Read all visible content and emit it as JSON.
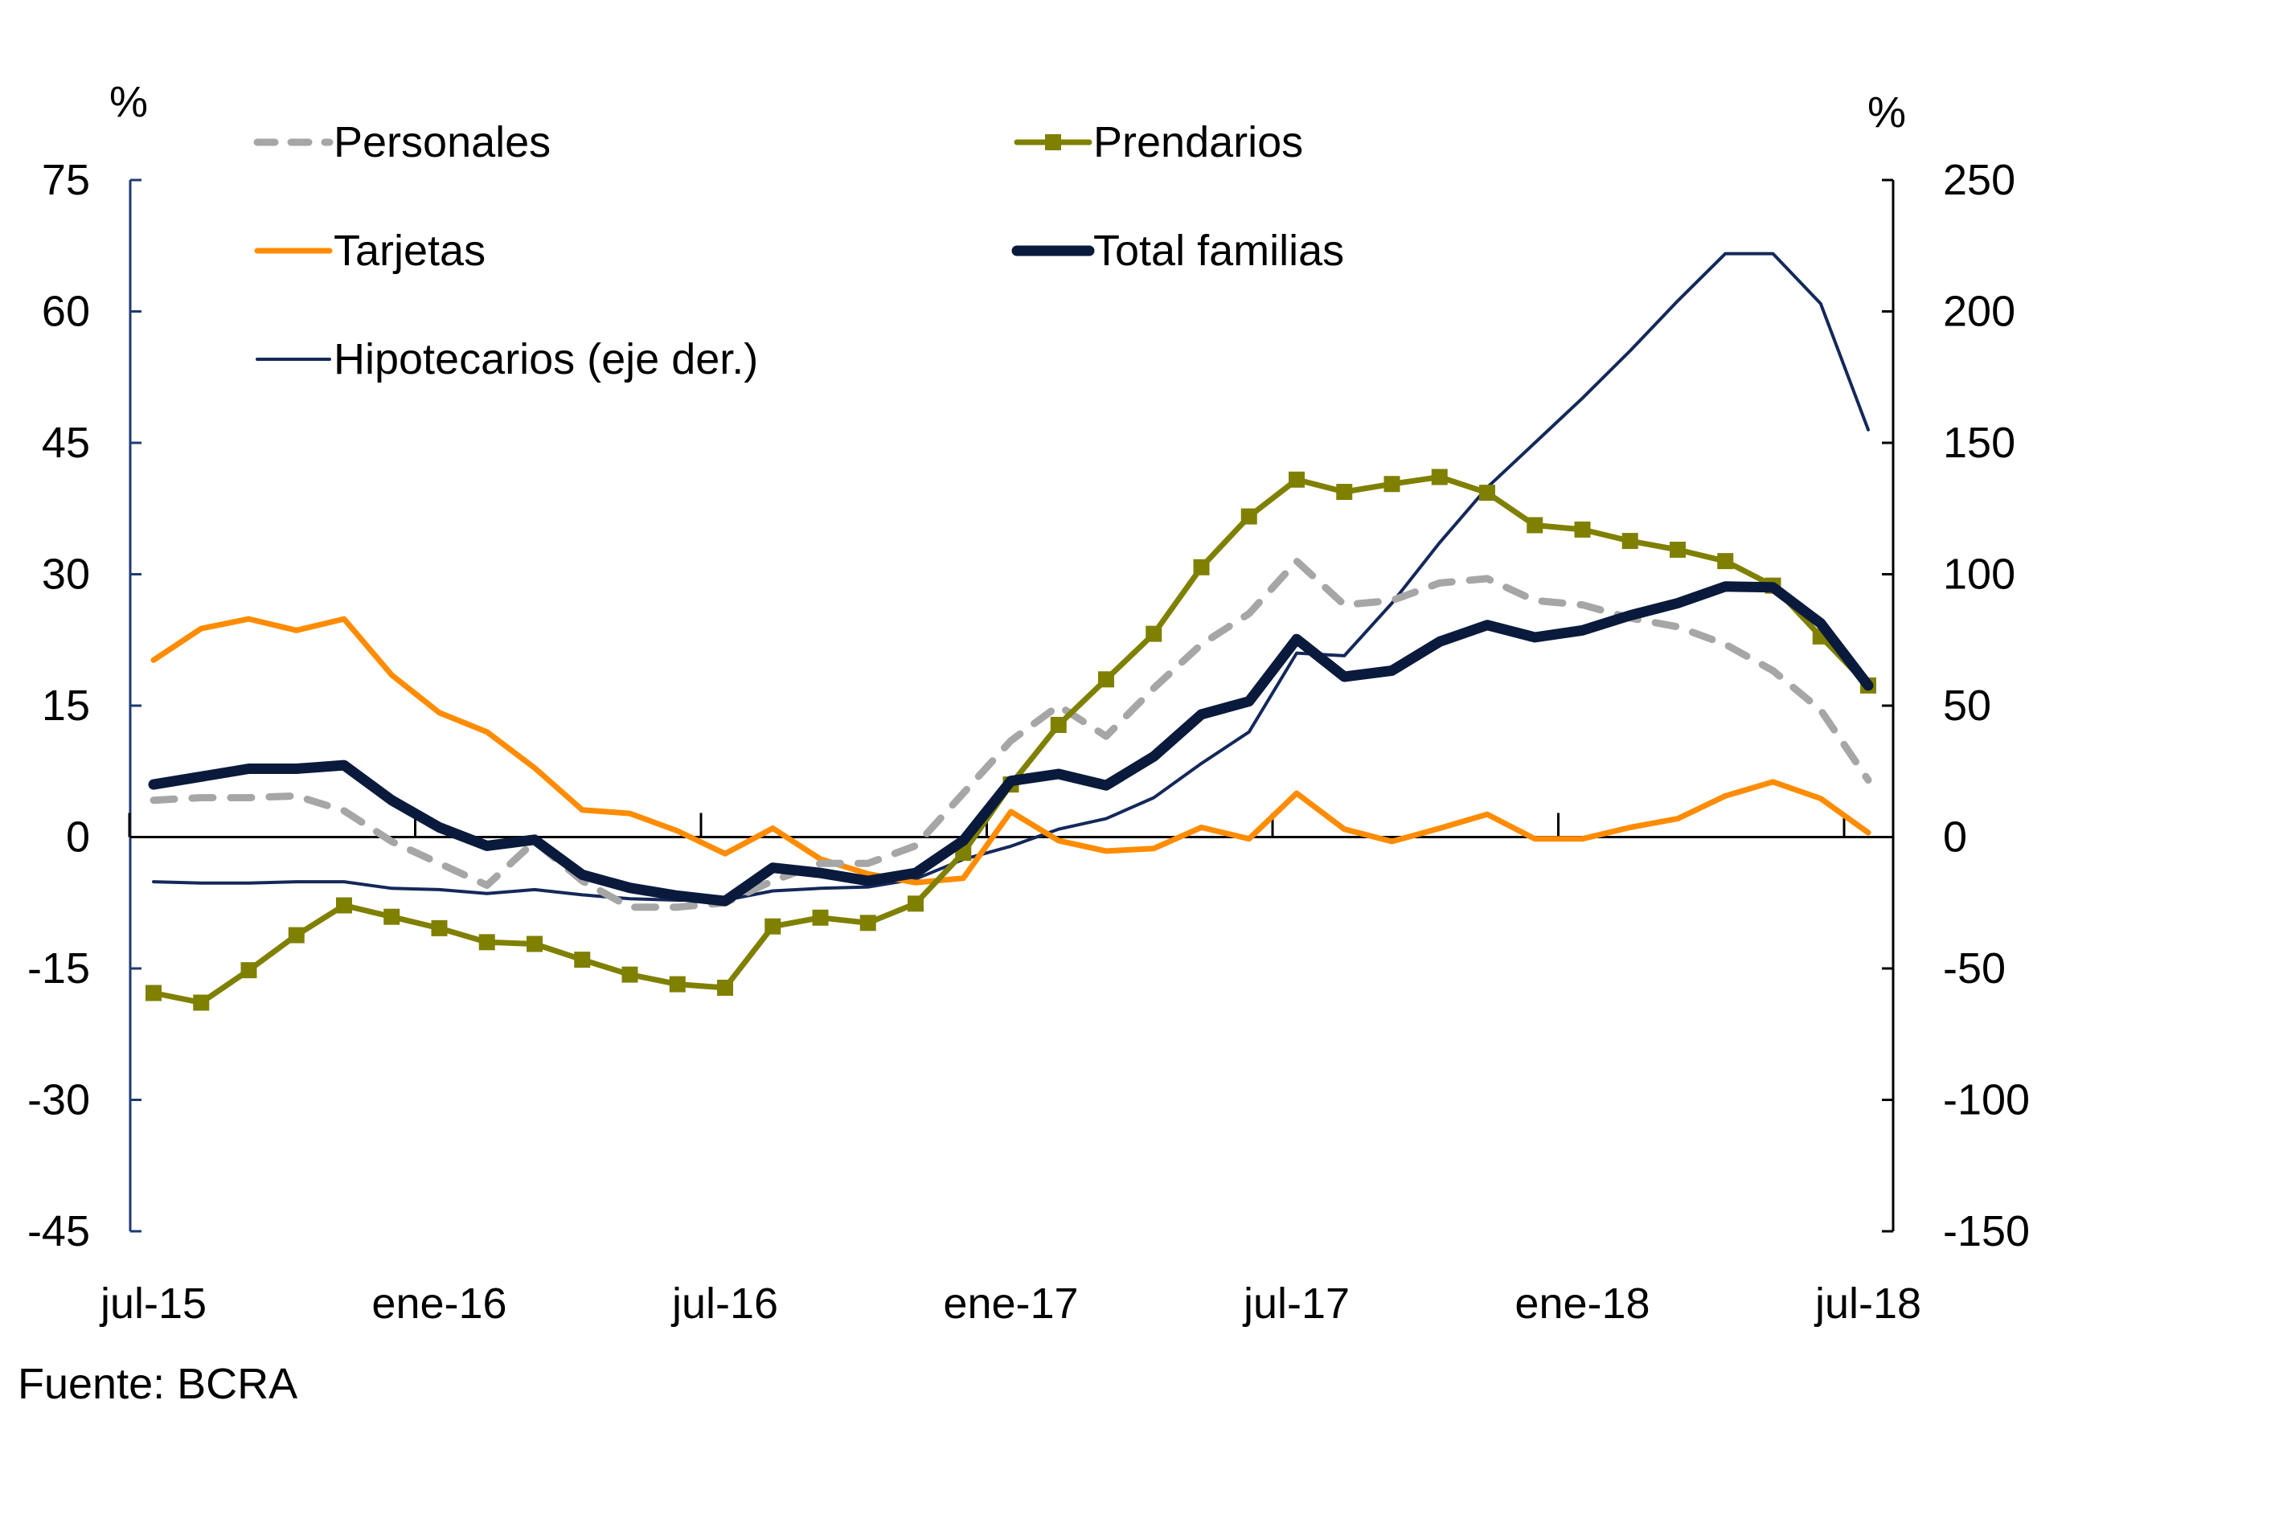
{
  "chart_data": {
    "type": "line",
    "title": "",
    "source": "Fuente: BCRA",
    "left_axis": {
      "unit_label": "%",
      "ylim": [
        -45,
        75
      ],
      "ticks": [
        75,
        60,
        45,
        30,
        15,
        0,
        -15,
        -30,
        -45
      ]
    },
    "right_axis": {
      "unit_label": "%",
      "ylim": [
        -150,
        250
      ],
      "ticks": [
        250,
        200,
        150,
        100,
        50,
        0,
        -50,
        -100,
        -150
      ]
    },
    "x_tick_labels": [
      "jul-15",
      "ene-16",
      "jul-16",
      "ene-17",
      "jul-17",
      "ene-18",
      "jul-18"
    ],
    "x_tick_indices": [
      0,
      6,
      12,
      18,
      24,
      30,
      36
    ],
    "legend": {
      "placement": "top-left"
    },
    "series": [
      {
        "name": "Personales",
        "axis": "left",
        "color": "#A6A6A6",
        "style": "dashed",
        "values": [
          4.2,
          4.5,
          4.5,
          4.7,
          3.0,
          -0.5,
          -3.0,
          -5.5,
          -0.5,
          -5.0,
          -8.0,
          -8.0,
          -7.5,
          -5.0,
          -3.0,
          -3.0,
          -1.0,
          5.0,
          11.0,
          15.0,
          11.5,
          17.0,
          22.0,
          25.5,
          31.5,
          26.5,
          27.0,
          29.0,
          29.5,
          27.0,
          26.5,
          25.0,
          24.0,
          22.0,
          19.0,
          14.5,
          6.5
        ]
      },
      {
        "name": "Prendarios",
        "axis": "left",
        "color": "#7F8000",
        "style": "solid-square-markers",
        "values": [
          -17.8,
          -18.9,
          -15.2,
          -11.2,
          -7.8,
          -9.1,
          -10.4,
          -12.0,
          -12.2,
          -14.0,
          -15.7,
          -16.8,
          -17.2,
          -10.2,
          -9.2,
          -9.8,
          -7.6,
          -1.8,
          6.0,
          12.8,
          18.0,
          23.2,
          30.8,
          36.6,
          40.8,
          39.4,
          40.3,
          41.1,
          39.3,
          35.6,
          35.1,
          33.8,
          32.8,
          31.5,
          28.7,
          22.9,
          17.3
        ]
      },
      {
        "name": "Tarjetas",
        "axis": "left",
        "color": "#FF8C00",
        "style": "solid",
        "values": [
          20.2,
          23.8,
          24.9,
          23.6,
          24.9,
          18.5,
          14.2,
          12.0,
          7.9,
          3.1,
          2.7,
          0.7,
          -1.9,
          1.0,
          -2.5,
          -4.2,
          -5.2,
          -4.7,
          2.9,
          -0.4,
          -1.6,
          -1.3,
          1.1,
          -0.2,
          5.0,
          0.9,
          -0.5,
          1.0,
          2.6,
          -0.2,
          -0.2,
          1.1,
          2.1,
          4.7,
          6.3,
          4.4,
          0.5
        ]
      },
      {
        "name": "Total familias",
        "axis": "left",
        "color": "#0A1A3C",
        "style": "thick",
        "values": [
          6.0,
          6.9,
          7.8,
          7.8,
          8.2,
          4.2,
          1.1,
          -1.0,
          -0.3,
          -4.3,
          -5.8,
          -6.7,
          -7.3,
          -3.5,
          -4.1,
          -5.0,
          -4.1,
          -0.4,
          6.4,
          7.2,
          5.9,
          9.2,
          14.0,
          15.5,
          22.6,
          18.3,
          19.0,
          22.3,
          24.2,
          22.8,
          23.6,
          25.3,
          26.7,
          28.6,
          28.5,
          24.4,
          17.3
        ]
      },
      {
        "name": "Hipotecarios (eje der.)",
        "axis": "right",
        "color": "#14285A",
        "style": "thin",
        "values": [
          -17,
          -17.5,
          -17.5,
          -17,
          -17,
          -19.5,
          -20,
          -21.5,
          -20,
          -22,
          -23.5,
          -24,
          -24,
          -20.5,
          -19.5,
          -19,
          -16,
          -8.5,
          -3.5,
          3,
          7,
          15,
          28,
          40,
          70,
          69,
          89,
          112,
          133,
          150,
          167,
          185,
          204,
          222,
          222,
          203,
          155
        ]
      }
    ]
  }
}
